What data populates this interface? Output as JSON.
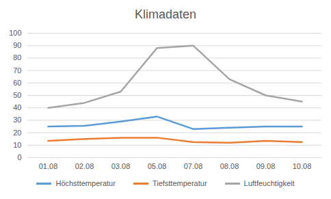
{
  "chart_data": {
    "type": "line",
    "title": "Klimadaten",
    "categories": [
      "01.08",
      "02.08",
      "03.08",
      "05.08",
      "07.08",
      "08.08",
      "09.08",
      "10.08"
    ],
    "series": [
      {
        "name": "Höchsttemperatur",
        "color": "#5b9bd5",
        "values": [
          25,
          25.5,
          29,
          33,
          23,
          24,
          25,
          25
        ]
      },
      {
        "name": "Tiefsttemperatur",
        "color": "#ed7d31",
        "values": [
          13.5,
          15,
          16,
          16,
          12.5,
          12,
          13.5,
          12.5
        ]
      },
      {
        "name": "Luftfeuchtigkeit",
        "color": "#a5a5a5",
        "values": [
          40,
          44,
          53,
          88,
          90,
          63,
          50,
          45
        ]
      }
    ],
    "ylim": [
      0,
      100
    ],
    "yticks": [
      0,
      10,
      20,
      30,
      40,
      50,
      60,
      70,
      80,
      90,
      100
    ],
    "grid": true,
    "legend": "bottom"
  }
}
